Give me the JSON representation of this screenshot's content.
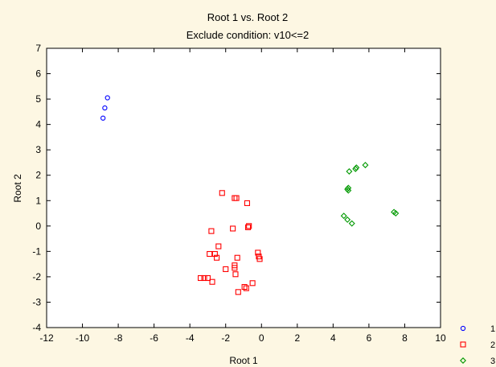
{
  "chart_data": {
    "type": "scatter",
    "title": "Root 1 vs. Root 2",
    "subtitle": "Exclude condition: v10<=2",
    "xlabel": "Root 1",
    "ylabel": "Root 2",
    "xlim": [
      -12,
      10
    ],
    "ylim": [
      -4,
      7
    ],
    "xticks": [
      "-12",
      "-10",
      "-8",
      "-6",
      "-4",
      "-2",
      "0",
      "2",
      "4",
      "6",
      "8",
      "10"
    ],
    "yticks": [
      "-4",
      "-3",
      "-2",
      "-1",
      "0",
      "1",
      "2",
      "3",
      "4",
      "5",
      "6",
      "7"
    ],
    "grid": false,
    "legend_position": "bottom-right",
    "series": [
      {
        "name": "1",
        "marker": "circle",
        "color": "#0000ff",
        "points": [
          [
            -8.6,
            5.05
          ],
          [
            -8.75,
            4.65
          ],
          [
            -8.85,
            4.25
          ]
        ]
      },
      {
        "name": "2",
        "marker": "square",
        "color": "#ff0000",
        "points": [
          [
            -2.2,
            1.3
          ],
          [
            -1.5,
            1.1
          ],
          [
            -1.4,
            1.1
          ],
          [
            -0.8,
            0.9
          ],
          [
            -0.7,
            0.0
          ],
          [
            -0.75,
            -0.05
          ],
          [
            -1.6,
            -0.1
          ],
          [
            -2.8,
            -0.2
          ],
          [
            -2.4,
            -0.8
          ],
          [
            -2.9,
            -1.1
          ],
          [
            -2.6,
            -1.1
          ],
          [
            -2.5,
            -1.25
          ],
          [
            -1.35,
            -1.25
          ],
          [
            -0.2,
            -1.05
          ],
          [
            -0.15,
            -1.2
          ],
          [
            -0.1,
            -1.3
          ],
          [
            -1.5,
            -1.55
          ],
          [
            -1.5,
            -1.65
          ],
          [
            -2.0,
            -1.7
          ],
          [
            -1.45,
            -1.9
          ],
          [
            -3.4,
            -2.05
          ],
          [
            -3.2,
            -2.05
          ],
          [
            -3.0,
            -2.05
          ],
          [
            -2.75,
            -2.2
          ],
          [
            -0.5,
            -2.25
          ],
          [
            -0.95,
            -2.4
          ],
          [
            -0.85,
            -2.45
          ],
          [
            -1.3,
            -2.6
          ]
        ]
      },
      {
        "name": "3",
        "marker": "diamond",
        "color": "#009900",
        "points": [
          [
            5.8,
            2.4
          ],
          [
            5.3,
            2.3
          ],
          [
            5.25,
            2.25
          ],
          [
            4.9,
            2.15
          ],
          [
            4.85,
            1.5
          ],
          [
            4.8,
            1.45
          ],
          [
            4.85,
            1.4
          ],
          [
            7.4,
            0.55
          ],
          [
            7.5,
            0.5
          ],
          [
            4.6,
            0.4
          ],
          [
            4.8,
            0.25
          ],
          [
            5.05,
            0.1
          ]
        ]
      }
    ]
  }
}
